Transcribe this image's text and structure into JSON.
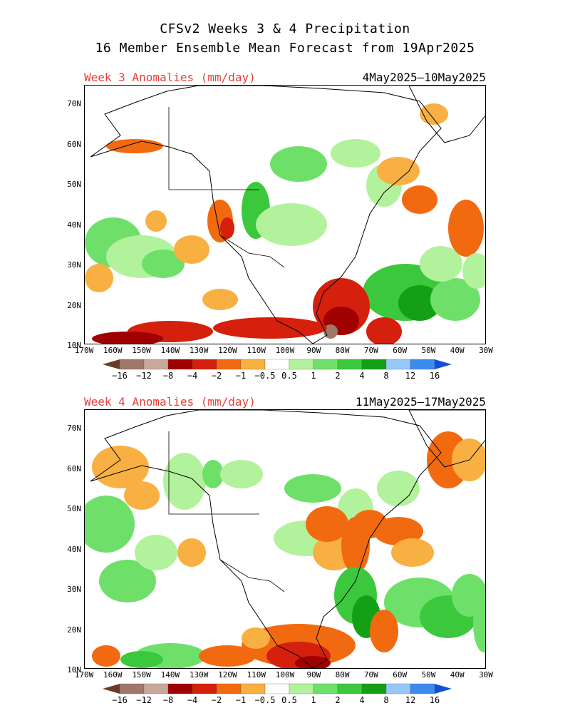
{
  "title": {
    "line1": "CFSv2 Weeks 3 & 4 Precipitation",
    "line2": "16 Member Ensemble Mean Forecast from 19Apr2025"
  },
  "panels": [
    {
      "label": "Week 3 Anomalies (mm/day)",
      "dates": "4May2025–10May2025"
    },
    {
      "label": "Week 4 Anomalies (mm/day)",
      "dates": "11May2025–17May2025"
    }
  ],
  "lat_labels": [
    "70N",
    "60N",
    "50N",
    "40N",
    "30N",
    "20N",
    "10N"
  ],
  "lon_labels": [
    "170W",
    "160W",
    "150W",
    "140W",
    "130W",
    "120W",
    "110W",
    "100W",
    "90W",
    "80W",
    "70W",
    "60W",
    "50W",
    "40W",
    "30W"
  ],
  "colorbar": {
    "labels": [
      "−16",
      "−12",
      "−8",
      "−4",
      "−2",
      "−1",
      "−0.5",
      "0.5",
      "1",
      "2",
      "4",
      "8",
      "12",
      "16"
    ],
    "colors": [
      "#6b3b2a",
      "#a0786a",
      "#c8a89a",
      "#a10000",
      "#d4200c",
      "#f26a0f",
      "#f8b042",
      "#ffffff",
      "#b2f29c",
      "#6ee06a",
      "#3cc83c",
      "#14a014",
      "#96c8f8",
      "#3c8cf0",
      "#1450d2"
    ]
  }
}
